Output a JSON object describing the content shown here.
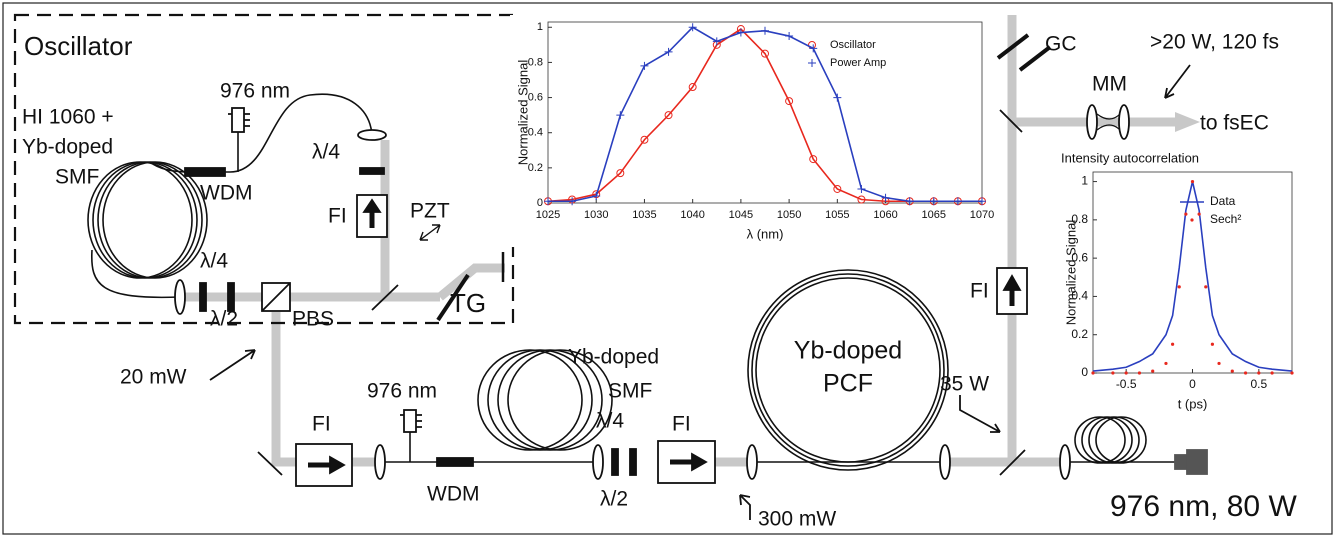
{
  "labels": {
    "oscillator": "Oscillator",
    "osc_pump": "976 nm",
    "osc_fiber_1": "HI 1060 +",
    "osc_fiber_2": "Yb-doped",
    "osc_fiber_3": "SMF",
    "osc_wdm": "WDM",
    "osc_qwp_top": "λ/4",
    "osc_fi": "FI",
    "pzt": "PZT",
    "osc_qwp": "λ/4",
    "osc_hwp": "λ/2",
    "pbs": "PBS",
    "tg": "TG",
    "power_20": "20 mW",
    "pre_pump": "976 nm",
    "pre_fi": "FI",
    "pre_wdm": "WDM",
    "pre_fiber_1": "Yb-doped",
    "pre_fiber_2": "SMF",
    "pre_qwp": "λ/4",
    "pre_hwp": "λ/2",
    "pre_fi2": "FI",
    "power_300": "300 mW",
    "pcf_1": "Yb-doped",
    "pcf_2": "PCF",
    "power_35": "35 W",
    "main_pump": "976 nm, 80 W",
    "amp_fi": "FI",
    "gc": "GC",
    "mm": "MM",
    "output": ">20 W, 120 fs",
    "to_fsec": "to fsEC"
  },
  "chart_data": [
    {
      "type": "line",
      "xlabel": "λ (nm)",
      "ylabel": "Normalized Signal",
      "x": [
        1025,
        1027.5,
        1030,
        1032.5,
        1035,
        1037.5,
        1040,
        1042.5,
        1045,
        1047.5,
        1050,
        1052.5,
        1055,
        1057.5,
        1060,
        1062.5,
        1065,
        1067.5,
        1070
      ],
      "series": [
        {
          "name": "Oscillator",
          "color": "#e8281e",
          "marker": "o",
          "values": [
            0.01,
            0.02,
            0.05,
            0.17,
            0.36,
            0.5,
            0.66,
            0.9,
            0.99,
            0.85,
            0.58,
            0.25,
            0.08,
            0.02,
            0.01,
            0.01,
            0.01,
            0.01,
            0.01
          ]
        },
        {
          "name": "Power Amp",
          "color": "#2a3fbf",
          "marker": "+",
          "values": [
            0.01,
            0.01,
            0.04,
            0.5,
            0.78,
            0.86,
            1.0,
            0.92,
            0.97,
            0.98,
            0.95,
            0.88,
            0.6,
            0.08,
            0.03,
            0.01,
            0.01,
            0.01,
            0.01
          ]
        }
      ],
      "xlim": [
        1025,
        1070
      ],
      "ylim": [
        0,
        1.03
      ],
      "xticks": [
        1025,
        1030,
        1035,
        1040,
        1045,
        1050,
        1055,
        1060,
        1065,
        1070
      ],
      "yticks": [
        0,
        0.2,
        0.4,
        0.6,
        0.8,
        1
      ],
      "legend": "upper right"
    },
    {
      "type": "line",
      "title": "Intensity autocorrelation",
      "xlabel": "t (ps)",
      "ylabel": "Normalized Signal",
      "x": [
        -0.75,
        -0.6,
        -0.5,
        -0.4,
        -0.3,
        -0.2,
        -0.15,
        -0.1,
        -0.05,
        0,
        0.05,
        0.1,
        0.15,
        0.2,
        0.3,
        0.4,
        0.5,
        0.6,
        0.75
      ],
      "series": [
        {
          "name": "Data",
          "color": "#2a3fbf",
          "marker": "none",
          "values": [
            0.01,
            0.02,
            0.03,
            0.06,
            0.1,
            0.2,
            0.3,
            0.55,
            0.85,
            1,
            0.85,
            0.55,
            0.3,
            0.2,
            0.1,
            0.06,
            0.03,
            0.02,
            0.01
          ]
        },
        {
          "name": "Sech²",
          "color": "#e8281e",
          "marker": ".",
          "values": [
            0,
            0,
            0,
            0,
            0.01,
            0.05,
            0.15,
            0.45,
            0.83,
            1,
            0.83,
            0.45,
            0.15,
            0.05,
            0.01,
            0,
            0,
            0,
            0
          ]
        }
      ],
      "xlim": [
        -0.75,
        0.75
      ],
      "ylim": [
        0,
        1.05
      ],
      "xticks": [
        -0.5,
        0,
        0.5
      ],
      "yticks": [
        0,
        0.2,
        0.4,
        0.6,
        0.8,
        1
      ],
      "legend": "upper right"
    }
  ]
}
